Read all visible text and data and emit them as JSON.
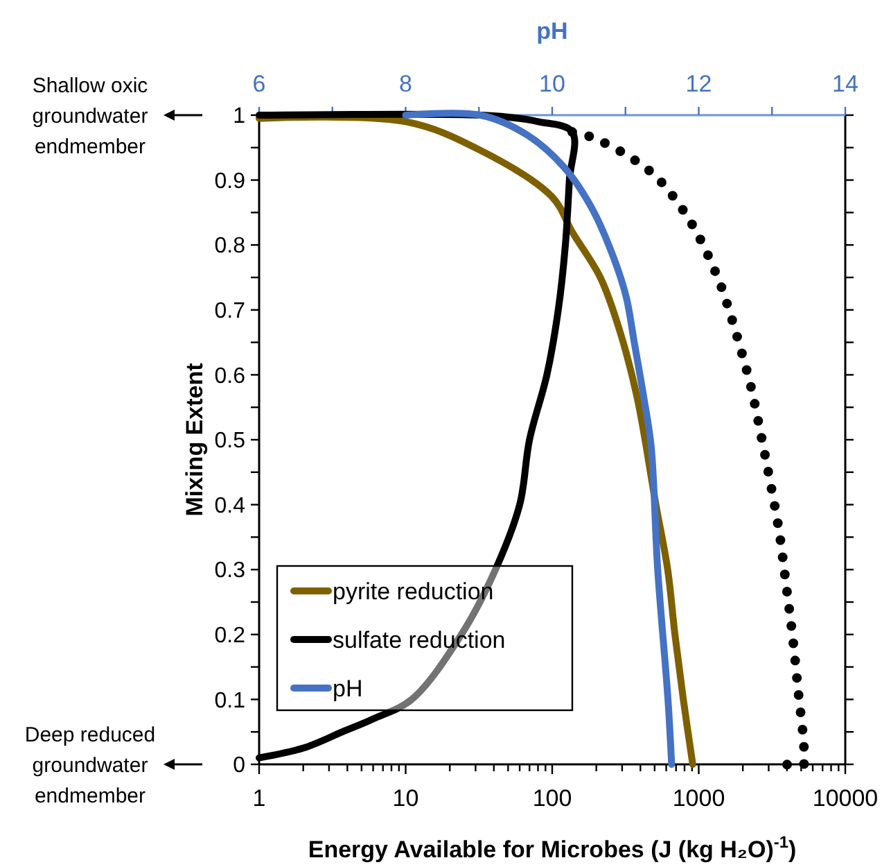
{
  "chart_data": {
    "type": "line",
    "xlabel": "Energy Available for Microbes (J (kg H₂O)$^{-1}$)",
    "ylabel": "Mixing Extent",
    "x2label": "pH",
    "log": "x",
    "xlim": [
      1,
      10000
    ],
    "ylim": [
      0,
      1
    ],
    "x2lim": [
      6,
      14
    ],
    "xticks": [
      1,
      {
        "value": 2,
        "label": null
      },
      {
        "value": 3,
        "label": null
      },
      {
        "value": 4,
        "label": null
      },
      {
        "value": 5,
        "label": null
      },
      {
        "value": 6,
        "label": null
      },
      {
        "value": 7,
        "label": null
      },
      {
        "value": 8,
        "label": null
      },
      {
        "value": 9,
        "label": null
      },
      10,
      {
        "value": 20,
        "label": null
      },
      {
        "value": 30,
        "label": null
      },
      {
        "value": 40,
        "label": null
      },
      {
        "value": 50,
        "label": null
      },
      {
        "value": 60,
        "label": null
      },
      {
        "value": 70,
        "label": null
      },
      {
        "value": 80,
        "label": null
      },
      {
        "value": 90,
        "label": null
      },
      100,
      {
        "value": 200,
        "label": null
      },
      {
        "value": 300,
        "label": null
      },
      {
        "value": 400,
        "label": null
      },
      {
        "value": 500,
        "label": null
      },
      {
        "value": 600,
        "label": null
      },
      {
        "value": 700,
        "label": null
      },
      {
        "value": 800,
        "label": null
      },
      {
        "value": 900,
        "label": null
      },
      1000,
      {
        "value": 2000,
        "label": null
      },
      {
        "value": 3000,
        "label": null
      },
      {
        "value": 4000,
        "label": null
      },
      {
        "value": 5000,
        "label": null
      },
      {
        "value": 6000,
        "label": null
      },
      {
        "value": 7000,
        "label": null
      },
      {
        "value": 8000,
        "label": null
      },
      {
        "value": 9000,
        "label": null
      },
      10000
    ],
    "x2ticks": [
      6,
      {
        "value": 7,
        "label": null
      },
      8,
      {
        "value": 9,
        "label": null
      },
      10,
      {
        "value": 11,
        "label": null
      },
      12,
      {
        "value": 13,
        "label": null
      },
      14
    ],
    "yticks": [
      0,
      {
        "value": 0.05,
        "label": null
      },
      0.1,
      {
        "value": 0.15,
        "label": null
      },
      0.2,
      {
        "value": 0.25,
        "label": null
      },
      0.3,
      {
        "value": 0.35,
        "label": null
      },
      0.4,
      {
        "value": 0.45,
        "label": null
      },
      0.5,
      {
        "value": 0.55,
        "label": null
      },
      0.6,
      {
        "value": 0.65,
        "label": null
      },
      0.7,
      {
        "value": 0.75,
        "label": null
      },
      0.8,
      {
        "value": 0.85,
        "label": null
      },
      0.9,
      {
        "value": 0.95,
        "label": null
      },
      1
    ],
    "grid": false,
    "legend": "bottom left",
    "marker": "none",
    "series": [
      {
        "name": "pyrite reduction",
        "color": "#7f6000",
        "line_style": "solid",
        "x": [
          1,
          10,
          31.6,
          100,
          137,
          213,
          287,
          380,
          510,
          614,
          688,
          785,
          910
        ],
        "values": [
          0.995,
          0.99,
          0.947,
          0.874,
          0.82,
          0.75,
          0.67,
          0.565,
          0.4,
          0.3,
          0.2,
          0.1,
          0
        ]
      },
      {
        "name": "sulfate reduction",
        "color": "#000000",
        "line_style": "solid",
        "x": [
          1,
          2,
          3.7,
          6,
          11,
          24,
          41,
          60,
          70,
          92,
          110,
          123,
          131,
          137,
          80,
          60,
          33,
          1
        ],
        "values": [
          0.01,
          0.025,
          0.05,
          0.07,
          0.1,
          0.2,
          0.3,
          0.4,
          0.5,
          0.6,
          0.7,
          0.8,
          0.9,
          0.974,
          0.99,
          0.995,
          1,
          1
        ]
      },
      {
        "name": "pH",
        "color": "#4472c4",
        "line_style": "solid",
        "axis": "x2",
        "x": [
          8,
          9.02,
          9.65,
          10.16,
          10.54,
          10.84,
          11.01,
          11.12,
          11.25,
          11.35,
          11.44,
          11.58,
          11.63
        ],
        "values": [
          1,
          1,
          0.97,
          0.92,
          0.857,
          0.78,
          0.72,
          0.65,
          0.565,
          0.49,
          0.3,
          0.1,
          0
        ]
      },
      {
        "color": "#000000",
        "line_style": "dotted",
        "x": [
          137,
          186,
          314,
          497,
          720,
          975,
          1380,
          1660,
          1950,
          2280,
          2700,
          3020,
          3530,
          3930,
          4370,
          4790,
          5210,
          5200,
          3930
        ],
        "values": [
          0.974,
          0.966,
          0.94,
          0.908,
          0.865,
          0.818,
          0.744,
          0.69,
          0.637,
          0.58,
          0.5,
          0.444,
          0.36,
          0.28,
          0.197,
          0.11,
          0.03,
          0,
          0
        ]
      }
    ],
    "annotations": [
      "Shallow oxic groundwater endmember",
      "Deep reduced groundwater endmember"
    ]
  }
}
